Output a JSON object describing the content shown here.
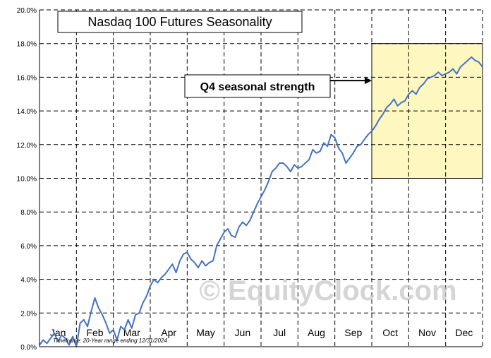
{
  "chart_data": {
    "type": "line",
    "title": "Nasdaq 100 Futures Seasonality",
    "xlabel": "",
    "ylabel": "",
    "ylim": [
      0,
      20
    ],
    "y_ticks": [
      "0.0%",
      "2.0%",
      "4.0%",
      "6.0%",
      "8.0%",
      "10.0%",
      "12.0%",
      "14.0%",
      "16.0%",
      "18.0%",
      "20.0%"
    ],
    "y_tick_values": [
      0,
      2,
      4,
      6,
      8,
      10,
      12,
      14,
      16,
      18,
      20
    ],
    "x_range": [
      0,
      12
    ],
    "months": [
      "Jan",
      "Feb",
      "Mar",
      "Apr",
      "May",
      "Jun",
      "Jul",
      "Aug",
      "Sep",
      "Oct",
      "Nov",
      "Dec"
    ],
    "grid": true,
    "series": [
      {
        "name": "Nasdaq 100 Futures Seasonality",
        "color": "#4472c4",
        "x": [
          0.0,
          0.1,
          0.2,
          0.3,
          0.4,
          0.5,
          0.6,
          0.7,
          0.8,
          0.9,
          1.0,
          1.1,
          1.2,
          1.3,
          1.4,
          1.5,
          1.6,
          1.7,
          1.8,
          1.9,
          2.0,
          2.1,
          2.2,
          2.3,
          2.4,
          2.5,
          2.6,
          2.7,
          2.8,
          2.9,
          3.0,
          3.1,
          3.2,
          3.3,
          3.4,
          3.5,
          3.6,
          3.7,
          3.8,
          3.9,
          4.0,
          4.1,
          4.2,
          4.3,
          4.4,
          4.5,
          4.6,
          4.7,
          4.8,
          4.9,
          5.0,
          5.1,
          5.2,
          5.3,
          5.4,
          5.5,
          5.6,
          5.7,
          5.8,
          5.9,
          6.0,
          6.1,
          6.2,
          6.3,
          6.4,
          6.5,
          6.6,
          6.7,
          6.8,
          6.9,
          7.0,
          7.1,
          7.2,
          7.3,
          7.4,
          7.5,
          7.6,
          7.7,
          7.8,
          7.9,
          8.0,
          8.1,
          8.2,
          8.3,
          8.4,
          8.5,
          8.6,
          8.7,
          8.8,
          8.9,
          9.0,
          9.1,
          9.2,
          9.3,
          9.4,
          9.5,
          9.6,
          9.7,
          9.8,
          9.9,
          10.0,
          10.1,
          10.2,
          10.3,
          10.4,
          10.5,
          10.6,
          10.7,
          10.8,
          10.9,
          11.0,
          11.1,
          11.2,
          11.3,
          11.4,
          11.5,
          11.6,
          11.7,
          11.8,
          11.9,
          12.0
        ],
        "values": [
          0.1,
          0.4,
          0.2,
          0.5,
          0.8,
          0.3,
          0.7,
          0.5,
          0.1,
          0.6,
          0.0,
          1.4,
          1.6,
          1.2,
          2.1,
          2.9,
          2.3,
          1.9,
          1.4,
          0.8,
          1.0,
          0.4,
          1.2,
          1.0,
          1.6,
          1.1,
          1.9,
          2.0,
          2.6,
          3.0,
          3.6,
          4.0,
          3.8,
          4.1,
          4.3,
          4.6,
          4.9,
          4.4,
          5.1,
          5.5,
          5.6,
          5.2,
          5.0,
          4.7,
          5.1,
          4.8,
          5.0,
          5.1,
          6.0,
          6.4,
          6.8,
          7.0,
          6.6,
          6.5,
          7.1,
          7.4,
          7.2,
          7.5,
          8.0,
          8.5,
          8.9,
          9.3,
          9.8,
          10.4,
          10.6,
          10.9,
          10.9,
          10.7,
          10.4,
          10.8,
          10.6,
          10.7,
          10.9,
          11.1,
          11.7,
          11.5,
          11.6,
          12.1,
          11.9,
          12.6,
          12.4,
          11.8,
          11.5,
          10.9,
          11.2,
          11.5,
          11.9,
          12.0,
          12.3,
          12.6,
          12.8,
          13.1,
          13.5,
          13.8,
          14.2,
          14.4,
          14.7,
          14.3,
          14.5,
          14.6,
          15.0,
          15.2,
          15.0,
          15.4,
          15.6,
          15.9,
          16.0,
          16.1,
          16.3,
          16.1,
          16.2,
          16.3,
          16.5,
          16.2,
          16.6,
          16.8,
          17.0,
          17.2,
          17.0,
          16.9,
          16.6
        ]
      }
    ],
    "highlight": {
      "x_start": 9.0,
      "x_end": 12.0,
      "y_start": 10.0,
      "y_end": 18.0,
      "color": "#fff7c0"
    },
    "annotation": {
      "text": "Q4 seasonal strength",
      "target_x": 9.0,
      "target_y": 15.8
    },
    "watermark": "© EquityClock.com",
    "footnote": "Timeframe: 20-Year range ending 12/31/2024",
    "colors": {
      "line": "#4472c4",
      "grid": "#000000",
      "highlight_fill": "#fff7c0",
      "highlight_border": "#000000"
    }
  }
}
